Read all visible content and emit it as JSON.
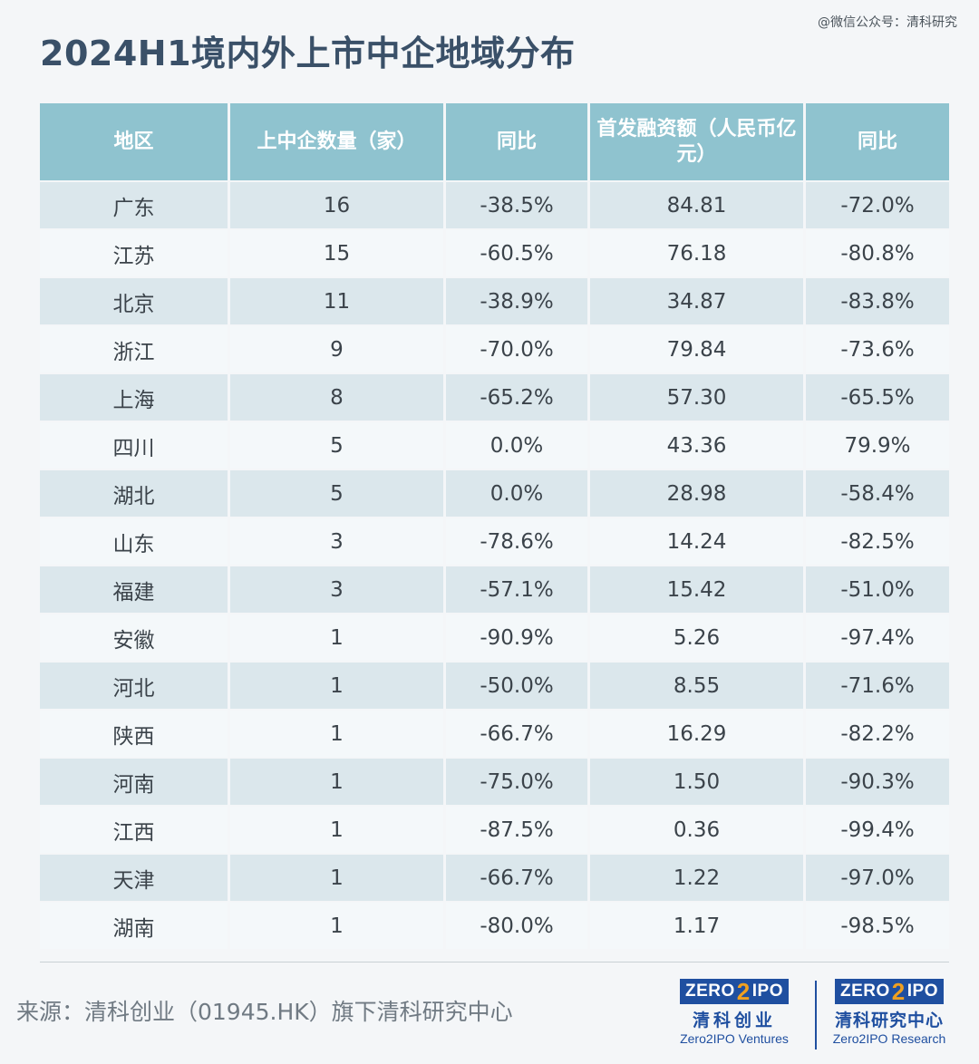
{
  "watermark": "@微信公众号：清科研究",
  "title": "2024H1境内外上市中企地域分布",
  "table": {
    "headers": [
      "地区",
      "上中企数量（家）",
      "同比",
      "首发融资额（人民币亿元）",
      "同比"
    ],
    "rows": [
      [
        "广东",
        "16",
        "-38.5%",
        "84.81",
        "-72.0%"
      ],
      [
        "江苏",
        "15",
        "-60.5%",
        "76.18",
        "-80.8%"
      ],
      [
        "北京",
        "11",
        "-38.9%",
        "34.87",
        "-83.8%"
      ],
      [
        "浙江",
        "9",
        "-70.0%",
        "79.84",
        "-73.6%"
      ],
      [
        "上海",
        "8",
        "-65.2%",
        "57.30",
        "-65.5%"
      ],
      [
        "四川",
        "5",
        "0.0%",
        "43.36",
        "79.9%"
      ],
      [
        "湖北",
        "5",
        "0.0%",
        "28.98",
        "-58.4%"
      ],
      [
        "山东",
        "3",
        "-78.6%",
        "14.24",
        "-82.5%"
      ],
      [
        "福建",
        "3",
        "-57.1%",
        "15.42",
        "-51.0%"
      ],
      [
        "安徽",
        "1",
        "-90.9%",
        "5.26",
        "-97.4%"
      ],
      [
        "河北",
        "1",
        "-50.0%",
        "8.55",
        "-71.6%"
      ],
      [
        "陕西",
        "1",
        "-66.7%",
        "16.29",
        "-82.2%"
      ],
      [
        "河南",
        "1",
        "-75.0%",
        "1.50",
        "-90.3%"
      ],
      [
        "江西",
        "1",
        "-87.5%",
        "0.36",
        "-99.4%"
      ],
      [
        "天津",
        "1",
        "-66.7%",
        "1.22",
        "-97.0%"
      ],
      [
        "湖南",
        "1",
        "-80.0%",
        "1.17",
        "-98.5%"
      ]
    ]
  },
  "source": "来源：清科创业（01945.HK）旗下清科研究中心",
  "logos": [
    {
      "badge_left": "ZERO",
      "badge_mid": "2",
      "badge_right": "IPO",
      "cn": "清科创业",
      "en": "Zero2IPO Ventures"
    },
    {
      "badge_left": "ZERO",
      "badge_mid": "2",
      "badge_right": "IPO",
      "cn": "清科研究中心",
      "en": "Zero2IPO Research"
    }
  ],
  "colors": {
    "header_bg": "#8fc3cf",
    "row_odd": "#dbe7ec",
    "row_even": "#f4f8fa",
    "title": "#3a5068",
    "brand_blue": "#1f4fa0",
    "brand_orange": "#f0a020"
  }
}
